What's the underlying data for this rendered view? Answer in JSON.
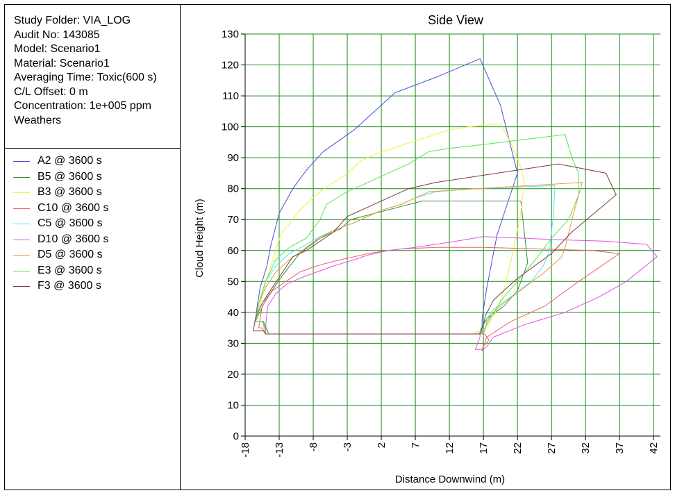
{
  "info": {
    "lines": [
      "Study Folder: VIA_LOG",
      "Audit No: 143085",
      "Model: Scenario1",
      "Material: Scenario1",
      "Averaging Time: Toxic(600 s)",
      "C/L Offset: 0 m",
      "Concentration: 1e+005 ppm",
      "Weathers"
    ]
  },
  "chart_data": {
    "type": "line",
    "title": "Side View",
    "xlabel": "Distance Downwind (m)",
    "ylabel": "Cloud Height (m)",
    "xlim": [
      -18,
      43
    ],
    "ylim": [
      0,
      130
    ],
    "xticks": [
      -18,
      -13,
      -8,
      -3,
      2,
      7,
      12,
      17,
      22,
      27,
      32,
      37,
      42
    ],
    "yticks": [
      0,
      10,
      20,
      30,
      40,
      50,
      60,
      70,
      80,
      90,
      100,
      110,
      120,
      130
    ],
    "grid": true,
    "legend_position": "left panel",
    "series": [
      {
        "name": "A2 @ 3600 s",
        "color": "#4b4bdc",
        "points": [
          [
            -16.5,
            37
          ],
          [
            -16.3,
            41
          ],
          [
            -15.8,
            48
          ],
          [
            -14.8,
            55
          ],
          [
            -14.3,
            61
          ],
          [
            -13,
            72
          ],
          [
            -11,
            80
          ],
          [
            -9,
            86
          ],
          [
            -6.5,
            92
          ],
          [
            -2,
            99
          ],
          [
            0,
            103
          ],
          [
            2.5,
            108
          ],
          [
            4,
            111
          ],
          [
            10,
            116
          ],
          [
            16.5,
            122
          ],
          [
            19.5,
            107
          ],
          [
            22,
            85
          ],
          [
            19,
            65
          ],
          [
            17.5,
            48
          ],
          [
            16.8,
            38
          ],
          [
            16.8,
            34
          ],
          [
            16.3,
            33
          ],
          [
            15.2,
            33
          ],
          [
            -15,
            33
          ],
          [
            -15.4,
            37
          ],
          [
            -16.5,
            37
          ]
        ]
      },
      {
        "name": "B5 @ 3600 s",
        "color": "#3c8c3c",
        "points": [
          [
            -16.5,
            37
          ],
          [
            -15,
            44
          ],
          [
            -12.5,
            52
          ],
          [
            -10,
            59
          ],
          [
            -7,
            64
          ],
          [
            -4,
            67
          ],
          [
            -2.5,
            70
          ],
          [
            1,
            72
          ],
          [
            8,
            76
          ],
          [
            22.5,
            76
          ],
          [
            23.5,
            56
          ],
          [
            22,
            47
          ],
          [
            20,
            42
          ],
          [
            17.5,
            38
          ],
          [
            17,
            36
          ],
          [
            16.5,
            34
          ],
          [
            15.5,
            33
          ],
          [
            -14.5,
            33
          ],
          [
            -15.3,
            37
          ],
          [
            -16.5,
            37
          ]
        ]
      },
      {
        "name": "B3 @ 3600 s",
        "color": "#f0f03c",
        "points": [
          [
            -16.5,
            37
          ],
          [
            -15.8,
            43
          ],
          [
            -14.5,
            53
          ],
          [
            -12.8,
            65
          ],
          [
            -10,
            73
          ],
          [
            -7,
            79
          ],
          [
            -3,
            85
          ],
          [
            -1,
            89
          ],
          [
            1,
            91
          ],
          [
            3,
            92.5
          ],
          [
            5,
            94
          ],
          [
            12,
            99
          ],
          [
            15,
            100
          ],
          [
            19.5,
            101
          ],
          [
            21,
            95
          ],
          [
            22.5,
            87
          ],
          [
            23,
            82
          ],
          [
            22.5,
            72
          ],
          [
            21,
            56
          ],
          [
            20,
            47
          ],
          [
            19,
            41
          ],
          [
            18,
            37
          ],
          [
            17.5,
            35
          ],
          [
            16.5,
            34
          ],
          [
            15.5,
            33
          ],
          [
            -15,
            33
          ],
          [
            -15.5,
            37
          ],
          [
            -16.5,
            37
          ]
        ]
      },
      {
        "name": "C10 @ 3600 s",
        "color": "#e66464",
        "points": [
          [
            -16,
            35
          ],
          [
            -15.5,
            42
          ],
          [
            -14,
            47
          ],
          [
            -12,
            50
          ],
          [
            -10,
            53
          ],
          [
            -7.5,
            55
          ],
          [
            -5,
            56.5
          ],
          [
            -2,
            58
          ],
          [
            0,
            59
          ],
          [
            3,
            60
          ],
          [
            5,
            60.5
          ],
          [
            10,
            61
          ],
          [
            17,
            61
          ],
          [
            25,
            60.5
          ],
          [
            33,
            60
          ],
          [
            37,
            59
          ],
          [
            31,
            50
          ],
          [
            26,
            42
          ],
          [
            21,
            37
          ],
          [
            17.5,
            32
          ],
          [
            16.8,
            28
          ],
          [
            16.8,
            27.5
          ],
          [
            17,
            29
          ],
          [
            17.8,
            31
          ],
          [
            17.2,
            33
          ],
          [
            -15,
            33
          ],
          [
            -15.5,
            35
          ],
          [
            -16,
            35
          ]
        ]
      },
      {
        "name": "C5 @ 3600 s",
        "color": "#50e6e6",
        "points": [
          [
            -16.5,
            37
          ],
          [
            -16,
            43
          ],
          [
            -15,
            50
          ],
          [
            -13.5,
            55
          ],
          [
            -11.5,
            59
          ],
          [
            -9,
            62
          ],
          [
            -7.5,
            64
          ],
          [
            -5,
            66.5
          ],
          [
            -2,
            69
          ],
          [
            0,
            71
          ],
          [
            2,
            73
          ],
          [
            5,
            75
          ],
          [
            7,
            77
          ],
          [
            10,
            79
          ],
          [
            16,
            80
          ],
          [
            27.5,
            81
          ],
          [
            27.3,
            72
          ],
          [
            26.7,
            60
          ],
          [
            25.8,
            55
          ],
          [
            24,
            50
          ],
          [
            21,
            45
          ],
          [
            18.5,
            41
          ],
          [
            17.5,
            38
          ],
          [
            17.3,
            35
          ],
          [
            16.7,
            34
          ],
          [
            16.5,
            33
          ],
          [
            -14.5,
            33
          ],
          [
            -15.5,
            37
          ],
          [
            -16.5,
            37
          ]
        ]
      },
      {
        "name": "D10 @ 3600 s",
        "color": "#e050e6",
        "points": [
          [
            -15,
            35
          ],
          [
            -14.7,
            42
          ],
          [
            -13.5,
            46
          ],
          [
            -12,
            49
          ],
          [
            -10,
            51
          ],
          [
            -7.5,
            53
          ],
          [
            -5,
            55
          ],
          [
            -2,
            57
          ],
          [
            0,
            58.5
          ],
          [
            3,
            60
          ],
          [
            7,
            61
          ],
          [
            10,
            62
          ],
          [
            13,
            63
          ],
          [
            17,
            64.5
          ],
          [
            28,
            63.5
          ],
          [
            35,
            63
          ],
          [
            41,
            62
          ],
          [
            42.5,
            58
          ],
          [
            38,
            50
          ],
          [
            34,
            45
          ],
          [
            29,
            40
          ],
          [
            23,
            36
          ],
          [
            18.5,
            32
          ],
          [
            17.5,
            29
          ],
          [
            17,
            28
          ],
          [
            16.5,
            28
          ],
          [
            15.8,
            28
          ],
          [
            16.5,
            32
          ],
          [
            16.5,
            33
          ],
          [
            -15,
            33
          ],
          [
            -15,
            35
          ]
        ]
      },
      {
        "name": "D5 @ 3600 s",
        "color": "#f0963c",
        "points": [
          [
            -16.5,
            37
          ],
          [
            -16,
            43
          ],
          [
            -15,
            48
          ],
          [
            -13.5,
            53
          ],
          [
            -11.5,
            57
          ],
          [
            -9,
            61
          ],
          [
            -7.5,
            63.5
          ],
          [
            -5,
            66.5
          ],
          [
            -2,
            69
          ],
          [
            0,
            71
          ],
          [
            2,
            73
          ],
          [
            5,
            75
          ],
          [
            7,
            77
          ],
          [
            9,
            79
          ],
          [
            16,
            80
          ],
          [
            31.5,
            82
          ],
          [
            30,
            70
          ],
          [
            29,
            61
          ],
          [
            28.5,
            58
          ],
          [
            26,
            53
          ],
          [
            23,
            48
          ],
          [
            20,
            43
          ],
          [
            18.5,
            40
          ],
          [
            18,
            38
          ],
          [
            17.5,
            36
          ],
          [
            17,
            34
          ],
          [
            16.5,
            33
          ],
          [
            -14.5,
            33
          ],
          [
            -15.5,
            37
          ],
          [
            -16.5,
            37
          ]
        ]
      },
      {
        "name": "E3 @ 3600 s",
        "color": "#50e650",
        "points": [
          [
            -16.5,
            37
          ],
          [
            -16,
            43
          ],
          [
            -15,
            50
          ],
          [
            -13.5,
            57
          ],
          [
            -11.5,
            61
          ],
          [
            -9,
            64
          ],
          [
            -7,
            70
          ],
          [
            -6,
            75
          ],
          [
            -3,
            79
          ],
          [
            0,
            82
          ],
          [
            3,
            85
          ],
          [
            6,
            88
          ],
          [
            9,
            92
          ],
          [
            12,
            93
          ],
          [
            16,
            94
          ],
          [
            29,
            97.5
          ],
          [
            30,
            90
          ],
          [
            31,
            85
          ],
          [
            31,
            78
          ],
          [
            29.5,
            70
          ],
          [
            27,
            64
          ],
          [
            25,
            58
          ],
          [
            22,
            50
          ],
          [
            20,
            45
          ],
          [
            18.5,
            40
          ],
          [
            17.5,
            37
          ],
          [
            17.2,
            34
          ],
          [
            16.7,
            33
          ],
          [
            -14.5,
            33
          ],
          [
            -15.5,
            37
          ],
          [
            -16.5,
            37
          ]
        ]
      },
      {
        "name": "F3 @ 3600 s",
        "color": "#7a3a3a",
        "points": [
          [
            -16.8,
            34
          ],
          [
            -16.5,
            38
          ],
          [
            -15.5,
            43
          ],
          [
            -14,
            48
          ],
          [
            -12.5,
            53
          ],
          [
            -11,
            58
          ],
          [
            -9,
            60
          ],
          [
            -7,
            63
          ],
          [
            -5,
            66
          ],
          [
            -3,
            71
          ],
          [
            0,
            74
          ],
          [
            3,
            77
          ],
          [
            6,
            80
          ],
          [
            10,
            82
          ],
          [
            16,
            84
          ],
          [
            28,
            88
          ],
          [
            35,
            85
          ],
          [
            36.5,
            78
          ],
          [
            30,
            66
          ],
          [
            27,
            59
          ],
          [
            22,
            51
          ],
          [
            18.5,
            44
          ],
          [
            17.3,
            39
          ],
          [
            17,
            36
          ],
          [
            16.8,
            35
          ],
          [
            16.5,
            33
          ],
          [
            -15,
            33
          ],
          [
            -15.3,
            34
          ],
          [
            -16.8,
            34
          ]
        ]
      }
    ]
  }
}
